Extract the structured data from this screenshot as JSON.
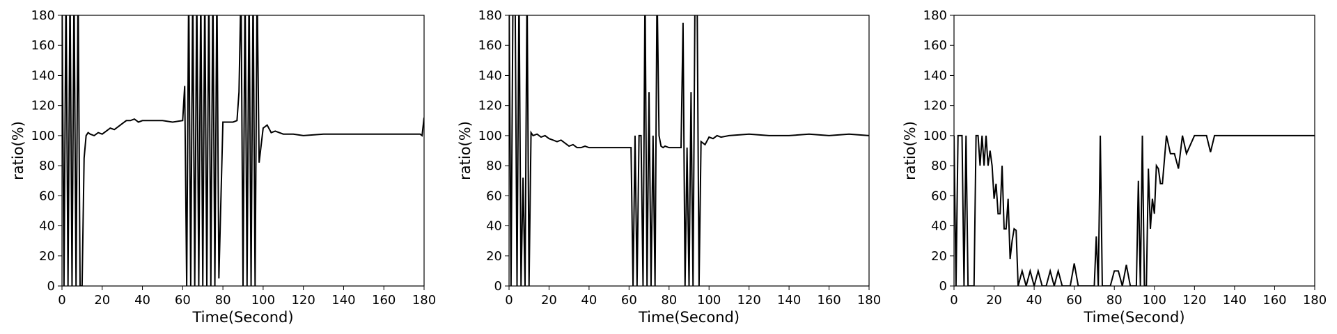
{
  "chart_data": [
    {
      "type": "line",
      "xlabel": "Time(Second)",
      "ylabel": "ratio(%)",
      "color": "#000000",
      "xlim": [
        0,
        180
      ],
      "ylim": [
        0,
        180
      ],
      "xticks": [
        0,
        20,
        40,
        60,
        80,
        100,
        120,
        140,
        160,
        180
      ],
      "yticks": [
        0,
        20,
        40,
        60,
        80,
        100,
        120,
        140,
        160,
        180
      ],
      "x": [
        0,
        1,
        2,
        3,
        4,
        5,
        6,
        7,
        8,
        9,
        10,
        11,
        12,
        13,
        14,
        16,
        18,
        20,
        22,
        24,
        26,
        28,
        30,
        32,
        34,
        36,
        38,
        40,
        45,
        50,
        55,
        60,
        61,
        62,
        63,
        64,
        65,
        66,
        67,
        68,
        69,
        70,
        71,
        72,
        73,
        74,
        75,
        76,
        77,
        78,
        80,
        85,
        87,
        88,
        89,
        90,
        91,
        92,
        93,
        94,
        95,
        96,
        97,
        98,
        100,
        101,
        102,
        104,
        106,
        110,
        115,
        120,
        130,
        140,
        150,
        160,
        170,
        178,
        179,
        180
      ],
      "values": [
        200,
        0,
        200,
        0,
        200,
        0,
        200,
        0,
        200,
        0,
        0,
        85,
        100,
        102,
        101,
        100,
        102,
        101,
        103,
        105,
        104,
        106,
        108,
        110,
        110,
        111,
        109,
        110,
        110,
        110,
        109,
        110,
        133,
        0,
        200,
        0,
        200,
        0,
        200,
        0,
        200,
        0,
        200,
        0,
        200,
        0,
        200,
        0,
        200,
        5,
        109,
        109,
        110,
        129,
        200,
        0,
        200,
        0,
        200,
        0,
        200,
        0,
        200,
        82,
        105,
        106,
        107,
        102,
        103,
        101,
        101,
        100,
        101,
        101,
        101,
        101,
        101,
        101,
        100,
        112
      ]
    },
    {
      "type": "line",
      "xlabel": "Time(Second)",
      "ylabel": "ratio(%)",
      "color": "#000000",
      "xlim": [
        0,
        180
      ],
      "ylim": [
        0,
        180
      ],
      "xticks": [
        0,
        20,
        40,
        60,
        80,
        100,
        120,
        140,
        160,
        180
      ],
      "yticks": [
        0,
        20,
        40,
        60,
        80,
        100,
        120,
        140,
        160,
        180
      ],
      "x": [
        0,
        1,
        2,
        3,
        4,
        5,
        6,
        7,
        8,
        9,
        10,
        11,
        12,
        14,
        16,
        18,
        20,
        22,
        24,
        26,
        28,
        30,
        32,
        34,
        36,
        38,
        40,
        45,
        50,
        55,
        60,
        61,
        62,
        63,
        64,
        65,
        66,
        67,
        68,
        69,
        70,
        71,
        72,
        73,
        74,
        75,
        76,
        77,
        78,
        80,
        84,
        86,
        87,
        88,
        89,
        90,
        91,
        92,
        93,
        94,
        95,
        96,
        97,
        98,
        100,
        102,
        104,
        106,
        110,
        120,
        130,
        140,
        150,
        160,
        170,
        180
      ],
      "values": [
        200,
        0,
        200,
        200,
        0,
        200,
        0,
        72,
        0,
        200,
        0,
        102,
        100,
        101,
        99,
        100,
        98,
        97,
        96,
        97,
        95,
        93,
        94,
        92,
        92,
        93,
        92,
        92,
        92,
        92,
        92,
        92,
        0,
        100,
        0,
        100,
        100,
        0,
        200,
        0,
        129,
        0,
        100,
        0,
        200,
        100,
        93,
        92,
        93,
        92,
        92,
        92,
        175,
        0,
        92,
        0,
        129,
        0,
        200,
        200,
        0,
        96,
        95,
        94,
        99,
        98,
        100,
        99,
        100,
        101,
        100,
        100,
        101,
        100,
        101,
        100
      ]
    },
    {
      "type": "line",
      "xlabel": "Time(Second)",
      "ylabel": "ratio(%)",
      "color": "#000000",
      "xlim": [
        0,
        180
      ],
      "ylim": [
        0,
        180
      ],
      "xticks": [
        0,
        20,
        40,
        60,
        80,
        100,
        120,
        140,
        160,
        180
      ],
      "yticks": [
        0,
        20,
        40,
        60,
        80,
        100,
        120,
        140,
        160,
        180
      ],
      "x": [
        0,
        1,
        2,
        3,
        4,
        5,
        6,
        7,
        8,
        9,
        10,
        11,
        12,
        13,
        14,
        15,
        16,
        17,
        18,
        19,
        20,
        21,
        22,
        23,
        24,
        25,
        26,
        27,
        28,
        29,
        30,
        31,
        32,
        33,
        34,
        36,
        38,
        40,
        42,
        44,
        46,
        48,
        50,
        52,
        54,
        56,
        58,
        60,
        62,
        64,
        70,
        71,
        72,
        73,
        74,
        76,
        78,
        80,
        82,
        84,
        86,
        88,
        90,
        91,
        92,
        93,
        94,
        95,
        96,
        97,
        98,
        99,
        100,
        101,
        102,
        103,
        104,
        106,
        108,
        110,
        112,
        114,
        116,
        120,
        124,
        126,
        128,
        130,
        140,
        150,
        160,
        170,
        180
      ],
      "values": [
        100,
        0,
        100,
        100,
        100,
        0,
        100,
        0,
        0,
        0,
        0,
        100,
        100,
        80,
        100,
        80,
        100,
        80,
        90,
        80,
        58,
        68,
        48,
        48,
        80,
        38,
        38,
        58,
        18,
        30,
        38,
        37,
        0,
        5,
        10,
        0,
        10,
        0,
        10,
        0,
        0,
        10,
        0,
        10,
        0,
        0,
        0,
        15,
        0,
        0,
        0,
        33,
        0,
        100,
        0,
        0,
        0,
        10,
        10,
        0,
        14,
        0,
        0,
        0,
        70,
        0,
        100,
        0,
        0,
        78,
        38,
        58,
        48,
        80,
        78,
        68,
        68,
        100,
        88,
        88,
        78,
        100,
        88,
        100,
        100,
        100,
        89,
        100,
        100,
        100,
        100,
        100,
        100
      ]
    }
  ]
}
